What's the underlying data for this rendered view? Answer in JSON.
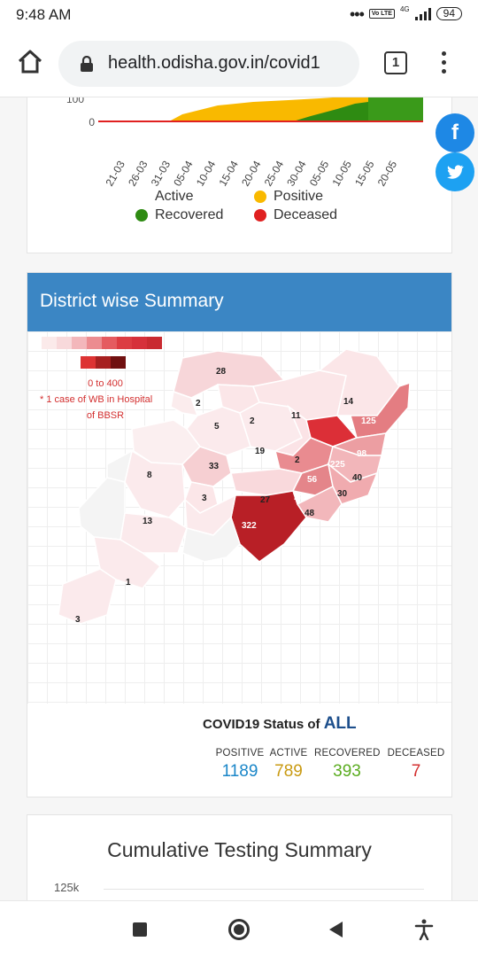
{
  "status_bar": {
    "time": "9:48 AM",
    "volte": "Vo LTE",
    "network": "4G",
    "battery": "94"
  },
  "browser": {
    "url": "health.odisha.gov.in/covid1",
    "tab_count": "1"
  },
  "chart_card": {
    "y_ticks": [
      "100",
      "0"
    ],
    "x_ticks": [
      "21-03",
      "26-03",
      "31-03",
      "05-04",
      "10-04",
      "15-04",
      "20-04",
      "25-04",
      "30-04",
      "05-05",
      "10-05",
      "15-05",
      "20-05"
    ],
    "legend": [
      {
        "label": "Active",
        "color": ""
      },
      {
        "label": "Positive",
        "color": "#f9b900"
      },
      {
        "label": "Recovered",
        "color": "#2e8b12"
      },
      {
        "label": "Deceased",
        "color": "#e02020"
      }
    ]
  },
  "district_card": {
    "title": "District wise Summary",
    "scale_range": "0 to 400",
    "note_line1": "* 1 case of WB in Hospital",
    "note_line2": "of BBSR",
    "district_counts": [
      "28",
      "2",
      "5",
      "2",
      "11",
      "14",
      "125",
      "19",
      "2",
      "225",
      "98",
      "8",
      "33",
      "56",
      "40",
      "3",
      "27",
      "74",
      "30",
      "48",
      "322",
      "13",
      "1",
      "3"
    ],
    "status_title": "COVID19 Status of ",
    "status_scope": "ALL",
    "stats": {
      "positive": {
        "label": "POSITIVE",
        "value": "1189",
        "color": "#1a86c8"
      },
      "active": {
        "label": "ACTIVE",
        "value": "789",
        "color": "#c99a12"
      },
      "recovered": {
        "label": "RECOVERED",
        "value": "393",
        "color": "#5aac1f"
      },
      "deceased": {
        "label": "DECEASED",
        "value": "7",
        "color": "#d32f2f"
      }
    }
  },
  "testing_card": {
    "title": "Cumulative Testing Summary",
    "y_tick": "125k"
  },
  "share": {
    "facebook_icon": "facebook-icon",
    "twitter_icon": "twitter-icon"
  }
}
